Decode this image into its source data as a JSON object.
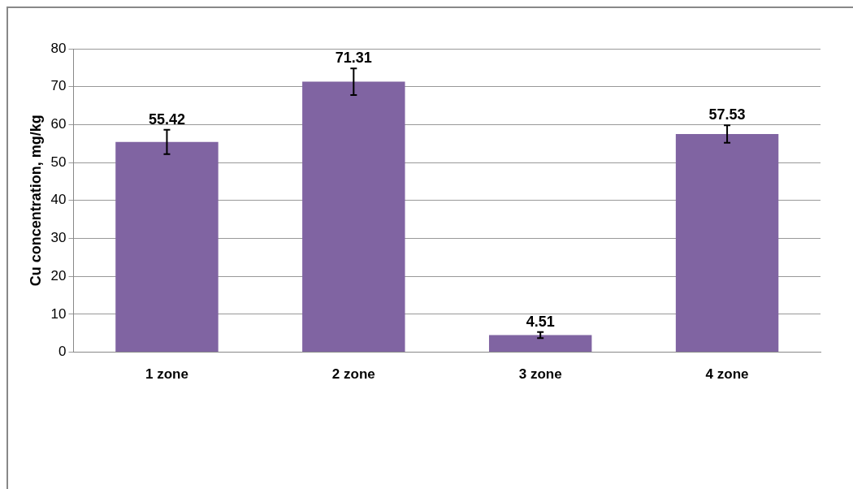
{
  "chart_data": {
    "type": "bar",
    "ylabel": "Cu concentration, mg/kg",
    "categories": [
      "1 zone",
      "2 zone",
      "3 zone",
      "4 zone"
    ],
    "values": [
      55.42,
      71.31,
      4.51,
      57.53
    ],
    "errors": [
      3.2,
      3.5,
      0.8,
      2.3
    ],
    "color": "#8064a2",
    "ylim": [
      0,
      80
    ],
    "yticks": [
      0,
      10,
      20,
      30,
      40,
      50,
      60,
      70,
      80
    ],
    "grid": "y",
    "data_labels": true
  }
}
